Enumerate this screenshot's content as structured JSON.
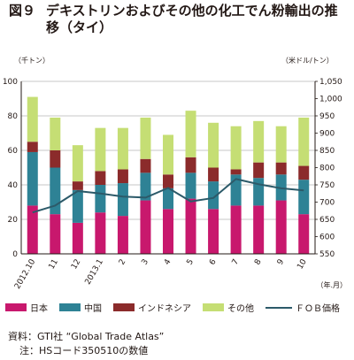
{
  "figure": {
    "label": "図９",
    "title": "デキストリンおよびその他の化工でん粉輸出の推移（タイ）"
  },
  "colors": {
    "japan": "#c8186d",
    "china": "#2e8295",
    "indonesia": "#8b2b2b",
    "other": "#c5de74",
    "fob": "#2c5a69"
  },
  "chart_data": {
    "type": "bar",
    "stacked": true,
    "categories": [
      "2012.10",
      "11",
      "12",
      "2013.1",
      "2",
      "3",
      "4",
      "5",
      "6",
      "7",
      "8",
      "9",
      "10"
    ],
    "series": [
      {
        "name": "日本",
        "values": [
          28,
          23,
          18,
          24,
          22,
          31,
          26,
          32,
          26,
          28,
          28,
          31,
          23
        ]
      },
      {
        "name": "中国",
        "values": [
          31,
          27,
          19,
          16,
          19,
          16,
          12,
          15,
          16,
          18,
          16,
          15,
          20
        ]
      },
      {
        "name": "インドネシア",
        "values": [
          6,
          10,
          5,
          8,
          8,
          8,
          8,
          9,
          8,
          3,
          9,
          7,
          8
        ]
      },
      {
        "name": "その他",
        "values": [
          26,
          19,
          21,
          25,
          24,
          24,
          23,
          27,
          26,
          25,
          24,
          21,
          28
        ]
      }
    ],
    "line_series": {
      "name": "ＦＯＢ価格",
      "values": [
        670,
        690,
        732,
        725,
        716,
        713,
        741,
        702,
        712,
        767,
        752,
        740,
        734
      ]
    },
    "ylim_left": [
      0,
      100
    ],
    "yticks_left": [
      "0",
      "20",
      "40",
      "60",
      "80",
      "100"
    ],
    "ylim_right": [
      550,
      1050
    ],
    "yticks_right": [
      "550",
      "600",
      "650",
      "700",
      "750",
      "800",
      "850",
      "900",
      "950",
      "1,000",
      "1,050"
    ],
    "ylabel_left": "（千トン）",
    "ylabel_right": "（米ドル/トン）",
    "xlabel": "（年.月）",
    "grid": true
  },
  "source": {
    "line1": "資料：GTI社 “Global Trade Atlas”",
    "line2": "注：HSコード350510の数値"
  }
}
